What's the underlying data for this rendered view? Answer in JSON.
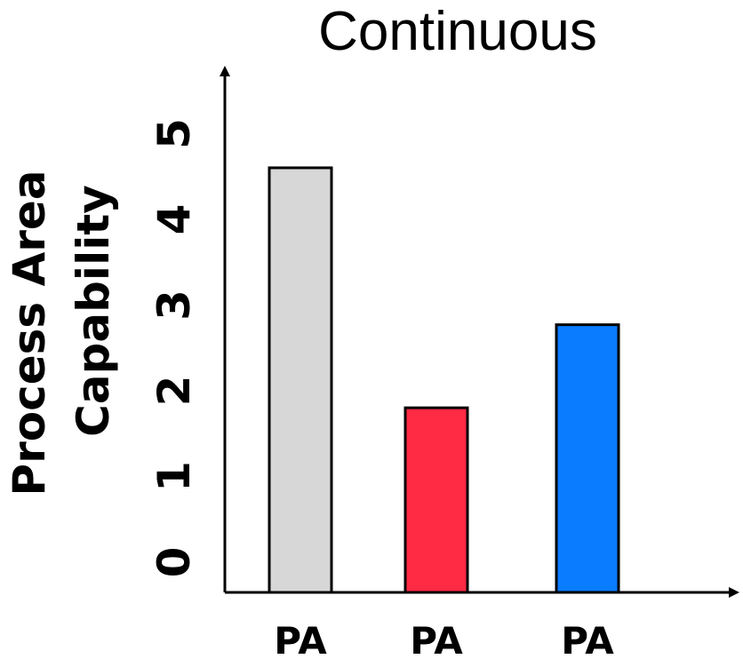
{
  "chart_data": {
    "type": "bar",
    "title": "Continuous",
    "xlabel": "",
    "ylabel_lines": [
      "Process Area",
      "Capability"
    ],
    "categories": [
      "PA",
      "PA",
      "PA"
    ],
    "values": [
      4.6,
      2.0,
      2.9
    ],
    "colors": [
      "#d7d7d7",
      "#ff2a44",
      "#0a7cff"
    ],
    "y_ticks": [
      "0",
      "1",
      "2",
      "3",
      "4",
      "5"
    ],
    "ylim": [
      0,
      5.6
    ],
    "grid": false,
    "legend": "none"
  }
}
